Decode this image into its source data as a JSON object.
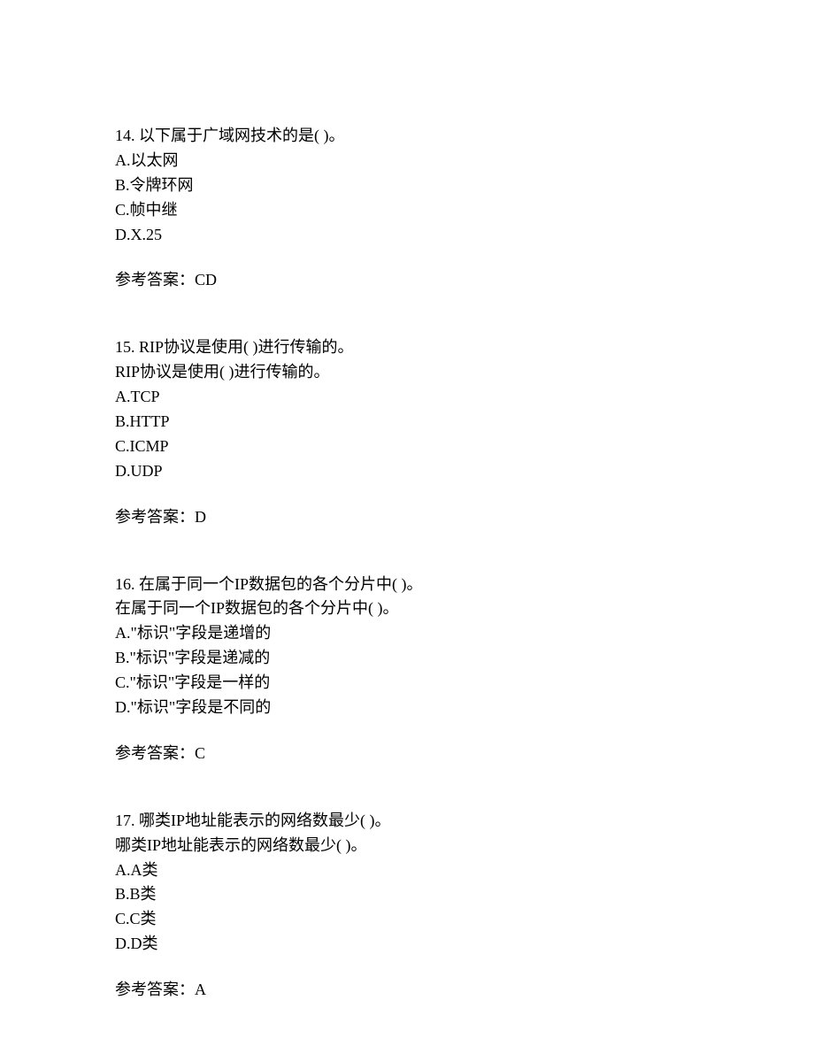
{
  "questions": [
    {
      "number": "14.",
      "stem": "以下属于广域网技术的是(  )。",
      "repeat": null,
      "options": [
        "A.以太网",
        "B.令牌环网",
        "C.帧中继",
        "D.X.25"
      ],
      "answer_label": "参考答案：",
      "answer_value": "CD"
    },
    {
      "number": "15.",
      "stem": "RIP协议是使用(  )进行传输的。",
      "repeat": "RIP协议是使用(  )进行传输的。",
      "options": [
        "A.TCP",
        "B.HTTP",
        "C.ICMP",
        "D.UDP"
      ],
      "answer_label": "参考答案：",
      "answer_value": "D"
    },
    {
      "number": "16.",
      "stem": "在属于同一个IP数据包的各个分片中(  )。",
      "repeat": "在属于同一个IP数据包的各个分片中(  )。",
      "options": [
        "A.\"标识\"字段是递增的",
        "B.\"标识\"字段是递减的",
        "C.\"标识\"字段是一样的",
        "D.\"标识\"字段是不同的"
      ],
      "answer_label": "参考答案：",
      "answer_value": "C"
    },
    {
      "number": "17.",
      "stem": "哪类IP地址能表示的网络数最少(  )。",
      "repeat": "哪类IP地址能表示的网络数最少(  )。",
      "options": [
        "A.A类",
        "B.B类",
        "C.C类",
        "D.D类"
      ],
      "answer_label": "参考答案：",
      "answer_value": "A"
    }
  ]
}
